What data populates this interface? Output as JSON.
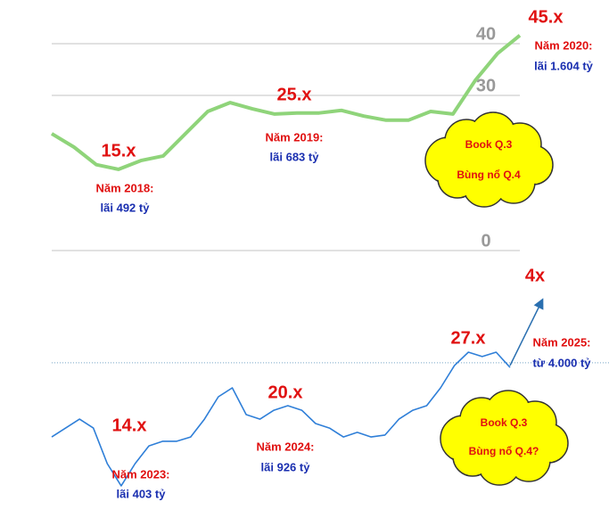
{
  "chart_data": [
    {
      "type": "line",
      "color": "#8fd47a",
      "ylim": [
        0,
        45
      ],
      "yticks": [
        0,
        30,
        40
      ],
      "grid": true,
      "values": [
        22.6,
        20,
        16.6,
        15.7,
        17.4,
        18.3,
        22.6,
        26.9,
        28.6,
        27.4,
        26.4,
        26.6,
        26.6,
        27.1,
        26,
        25.2,
        25.2,
        26.9,
        26.4,
        32.9,
        38.1,
        41.6
      ],
      "annotations": [
        "45.x",
        "Năm 2020:",
        "lãi 1.604 tỷ",
        "25.x",
        "Năm 2019:",
        "lãi 683 tỷ",
        "15.x",
        "Năm 2018:",
        "lãi 492 tỷ"
      ],
      "callout": [
        "Book Q.3",
        "Bùng nổ Q.4"
      ]
    },
    {
      "type": "line",
      "color": "#2f7fd8",
      "ylim": [
        0,
        100
      ],
      "reference_line": 60.4,
      "values": [
        29.6,
        33.3,
        37,
        33.3,
        18.5,
        9.3,
        18.5,
        25.9,
        27.8,
        27.8,
        29.6,
        37,
        46.3,
        50,
        38.9,
        37,
        40.7,
        42.6,
        40.7,
        35.2,
        33.3,
        29.6,
        31.5,
        29.6,
        30.4,
        37,
        40.7,
        42.6,
        50,
        59.3,
        64.8,
        63,
        64.8,
        58.5
      ],
      "annotations": [
        "4x",
        "27.x",
        "Năm 2025:",
        "từ 4.000 tỷ",
        "20.x",
        "Năm 2024:",
        "lãi 926 tỷ",
        "14.x",
        "Năm 2023:",
        "lãi 403 tỷ"
      ],
      "callout": [
        "Book Q.3",
        "Bùng nổ Q.4?"
      ]
    }
  ]
}
